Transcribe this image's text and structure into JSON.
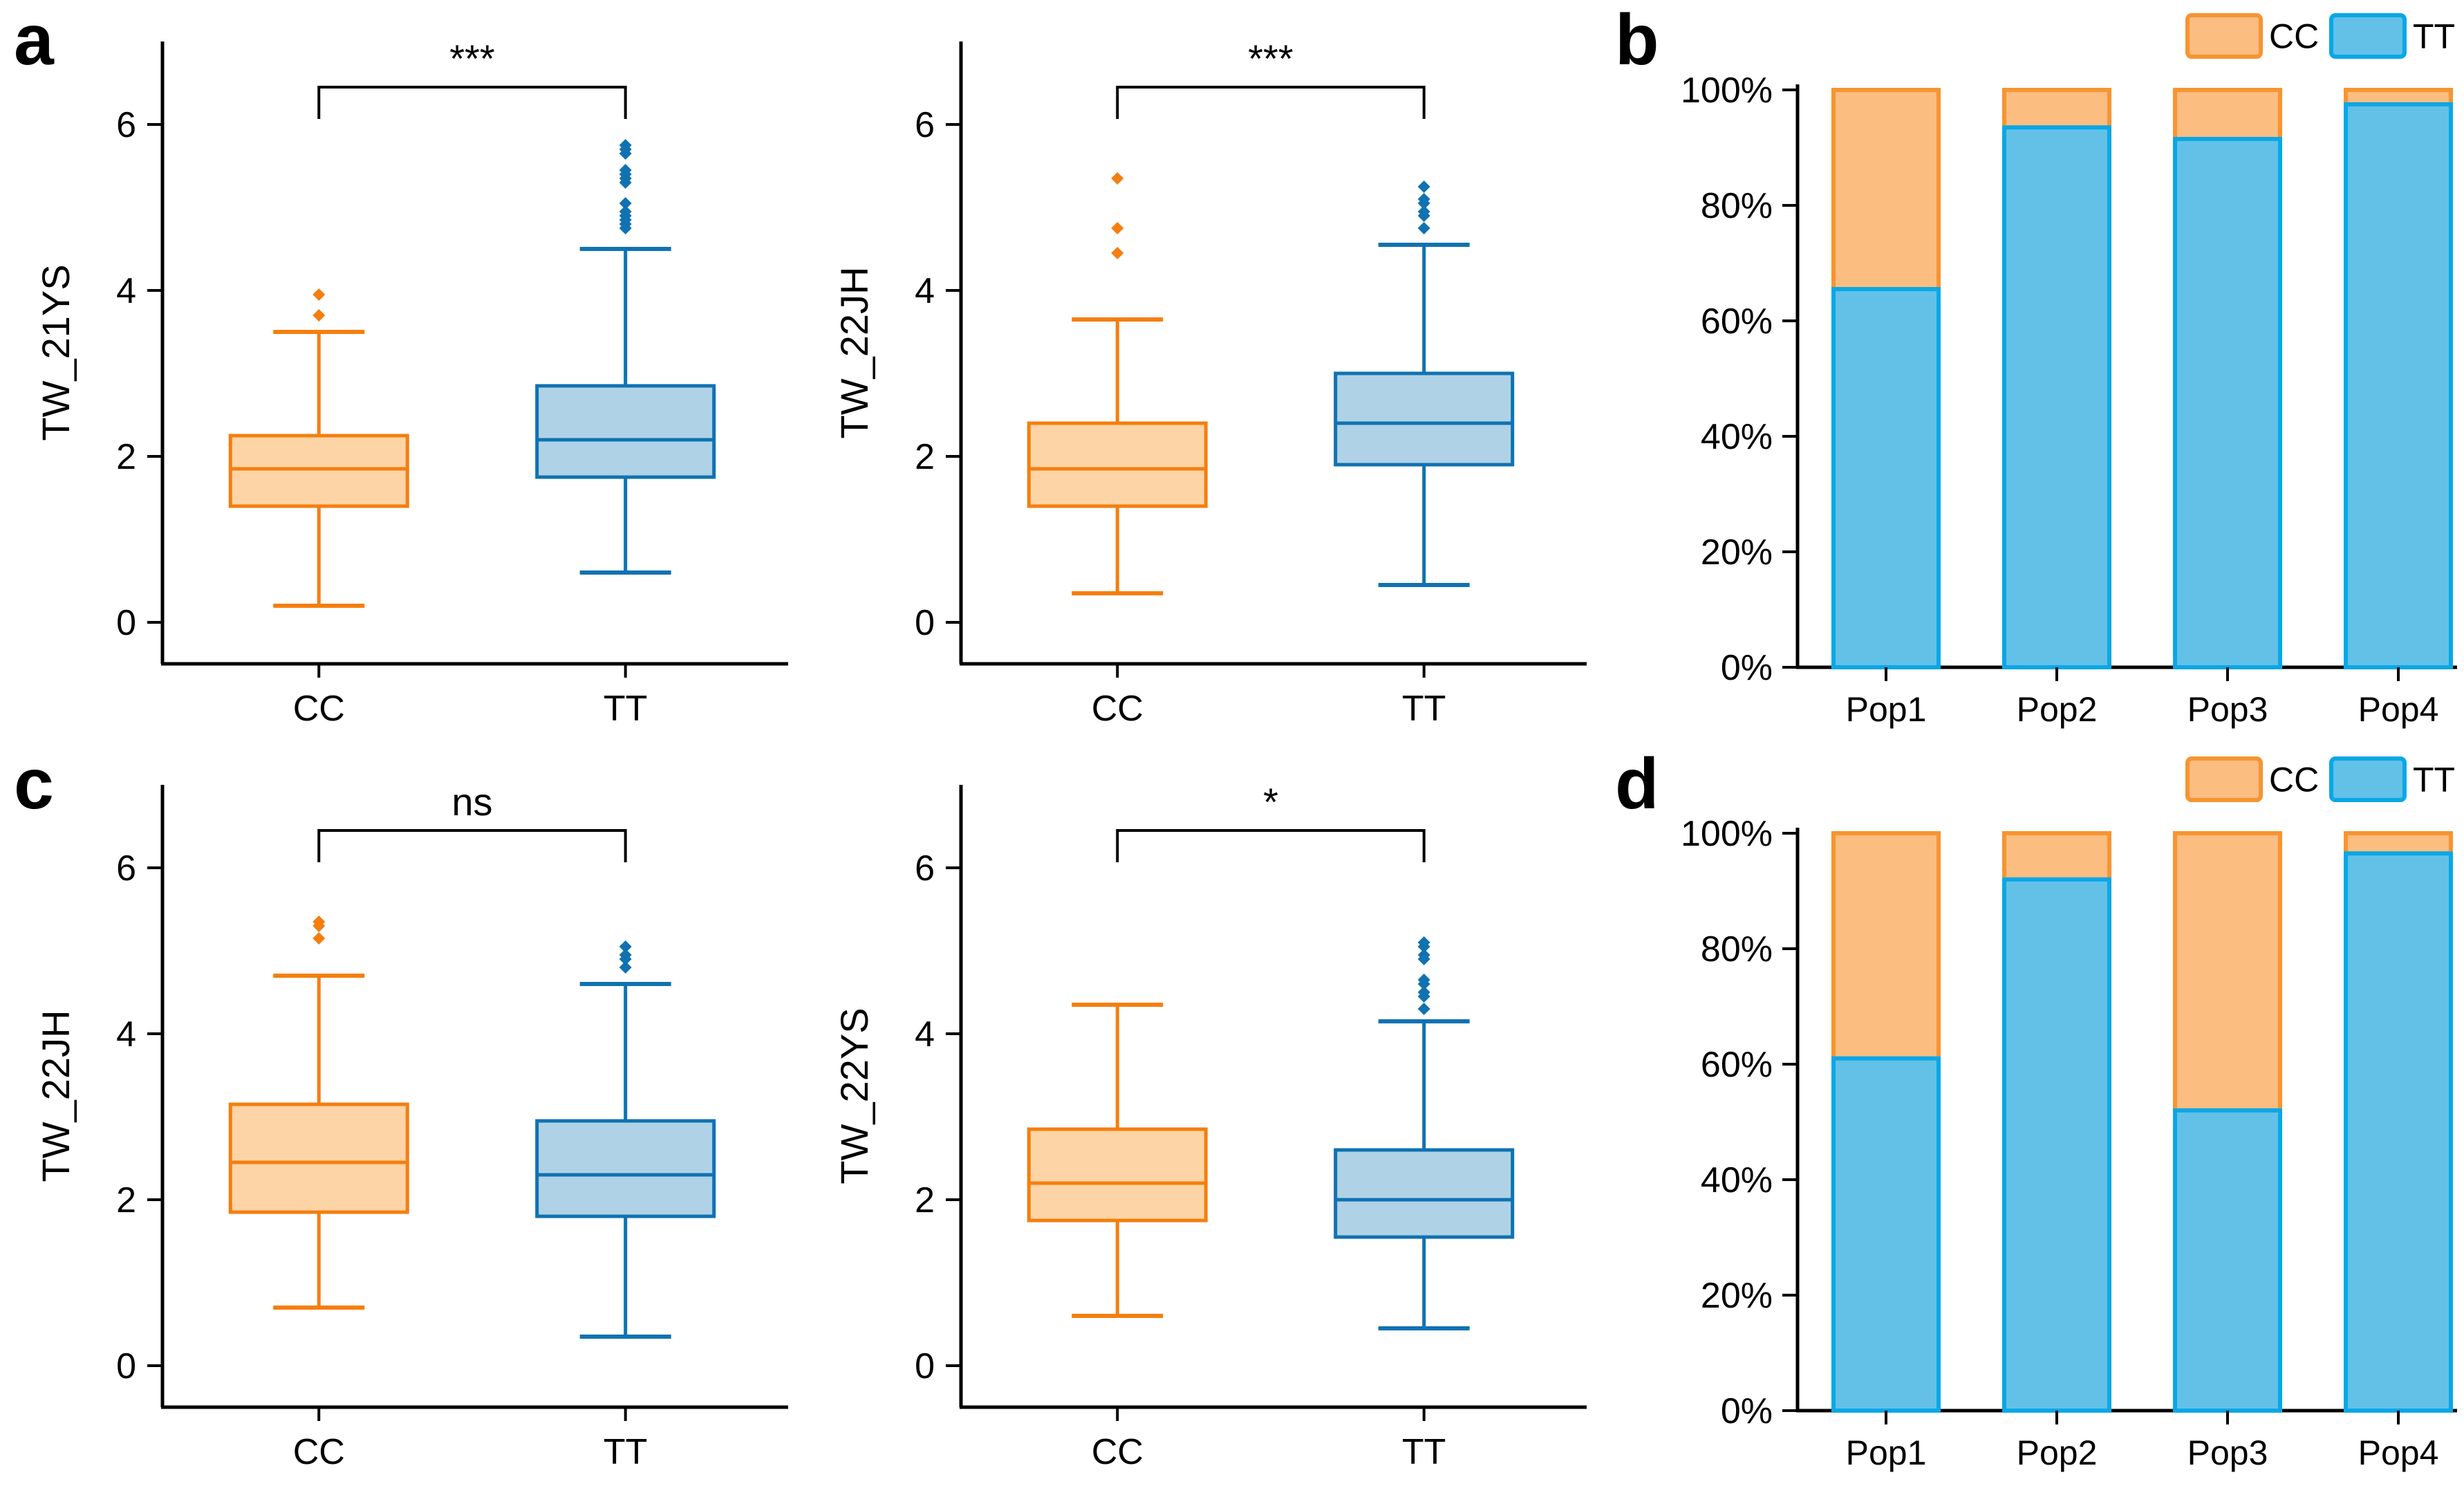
{
  "figure": {
    "panel_letters": {
      "a": "a",
      "b": "b",
      "c": "c",
      "d": "d"
    }
  },
  "colors": {
    "box_cc_fill": "#FDD4A5",
    "box_cc_stroke": "#F57E0E",
    "box_tt_fill": "#AFD2E6",
    "box_tt_stroke": "#1072B1",
    "bar_cc_fill": "#FBBD80",
    "bar_cc_stroke": "#F79431",
    "bar_tt_fill": "#63C1E8",
    "bar_tt_stroke": "#0AA7E6",
    "axis": "#000000",
    "text": "#000000"
  },
  "chart_data": [
    {
      "panel": "a",
      "type": "box",
      "y_ticks": [
        "0",
        "2",
        "4",
        "6"
      ],
      "y_tick_values": [
        0,
        2,
        4,
        6
      ],
      "ylim": [
        -0.5,
        7.0
      ],
      "subplots": [
        {
          "ylabel": "TW_21YS",
          "significance": "***",
          "groups": [
            {
              "name": "CC",
              "scheme": "cc",
              "whisker_low": 0.2,
              "q1": 1.4,
              "median": 1.85,
              "q3": 2.25,
              "whisker_high": 3.5,
              "outliers": [
                3.7,
                3.95
              ]
            },
            {
              "name": "TT",
              "scheme": "tt",
              "whisker_low": 0.6,
              "q1": 1.75,
              "median": 2.2,
              "q3": 2.85,
              "whisker_high": 4.5,
              "outliers": [
                4.75,
                4.8,
                4.85,
                4.9,
                4.95,
                5.05,
                5.3,
                5.35,
                5.4,
                5.45,
                5.65,
                5.7,
                5.75
              ]
            }
          ]
        },
        {
          "ylabel": "TW_22JH",
          "significance": "***",
          "groups": [
            {
              "name": "CC",
              "scheme": "cc",
              "whisker_low": 0.35,
              "q1": 1.4,
              "median": 1.85,
              "q3": 2.4,
              "whisker_high": 3.65,
              "outliers": [
                4.45,
                4.75,
                5.35
              ]
            },
            {
              "name": "TT",
              "scheme": "tt",
              "whisker_low": 0.45,
              "q1": 1.9,
              "median": 2.4,
              "q3": 3.0,
              "whisker_high": 4.55,
              "outliers": [
                4.75,
                4.9,
                4.95,
                5.05,
                5.1,
                5.25
              ]
            }
          ]
        }
      ]
    },
    {
      "panel": "b",
      "type": "stacked_bar_100",
      "categories": [
        "Pop1",
        "Pop2",
        "Pop3",
        "Pop4"
      ],
      "y_ticks": [
        "0%",
        "20%",
        "40%",
        "60%",
        "80%",
        "100%"
      ],
      "y_tick_values": [
        0,
        20,
        40,
        60,
        80,
        100
      ],
      "legend": [
        {
          "label": "CC",
          "scheme": "cc"
        },
        {
          "label": "TT",
          "scheme": "tt"
        }
      ],
      "series": [
        {
          "name": "TT",
          "scheme": "tt",
          "values": [
            65.5,
            93.5,
            91.5,
            97.5
          ]
        },
        {
          "name": "CC",
          "scheme": "cc",
          "values": [
            34.5,
            6.5,
            8.5,
            2.5
          ]
        }
      ]
    },
    {
      "panel": "c",
      "type": "box",
      "y_ticks": [
        "0",
        "2",
        "4",
        "6"
      ],
      "y_tick_values": [
        0,
        2,
        4,
        6
      ],
      "ylim": [
        -0.5,
        7.0
      ],
      "subplots": [
        {
          "ylabel": "TW_22JH",
          "significance": "ns",
          "groups": [
            {
              "name": "CC",
              "scheme": "cc",
              "whisker_low": 0.7,
              "q1": 1.85,
              "median": 2.45,
              "q3": 3.15,
              "whisker_high": 4.7,
              "outliers": [
                5.15,
                5.3,
                5.35
              ]
            },
            {
              "name": "TT",
              "scheme": "tt",
              "whisker_low": 0.35,
              "q1": 1.8,
              "median": 2.3,
              "q3": 2.95,
              "whisker_high": 4.6,
              "outliers": [
                4.8,
                4.9,
                4.95,
                5.05
              ]
            }
          ]
        },
        {
          "ylabel": "TW_22YS",
          "significance": "*",
          "groups": [
            {
              "name": "CC",
              "scheme": "cc",
              "whisker_low": 0.6,
              "q1": 1.75,
              "median": 2.2,
              "q3": 2.85,
              "whisker_high": 4.35,
              "outliers": []
            },
            {
              "name": "TT",
              "scheme": "tt",
              "whisker_low": 0.45,
              "q1": 1.55,
              "median": 2.0,
              "q3": 2.6,
              "whisker_high": 4.15,
              "outliers": [
                4.3,
                4.45,
                4.5,
                4.6,
                4.65,
                4.9,
                4.95,
                5.05,
                5.1
              ]
            }
          ]
        }
      ]
    },
    {
      "panel": "d",
      "type": "stacked_bar_100",
      "categories": [
        "Pop1",
        "Pop2",
        "Pop3",
        "Pop4"
      ],
      "y_ticks": [
        "0%",
        "20%",
        "40%",
        "60%",
        "80%",
        "100%"
      ],
      "y_tick_values": [
        0,
        20,
        40,
        60,
        80,
        100
      ],
      "legend": [
        {
          "label": "CC",
          "scheme": "cc"
        },
        {
          "label": "TT",
          "scheme": "tt"
        }
      ],
      "series": [
        {
          "name": "TT",
          "scheme": "tt",
          "values": [
            61.0,
            92.0,
            52.0,
            96.5
          ]
        },
        {
          "name": "CC",
          "scheme": "cc",
          "values": [
            39.0,
            8.0,
            48.0,
            3.5
          ]
        }
      ]
    }
  ]
}
